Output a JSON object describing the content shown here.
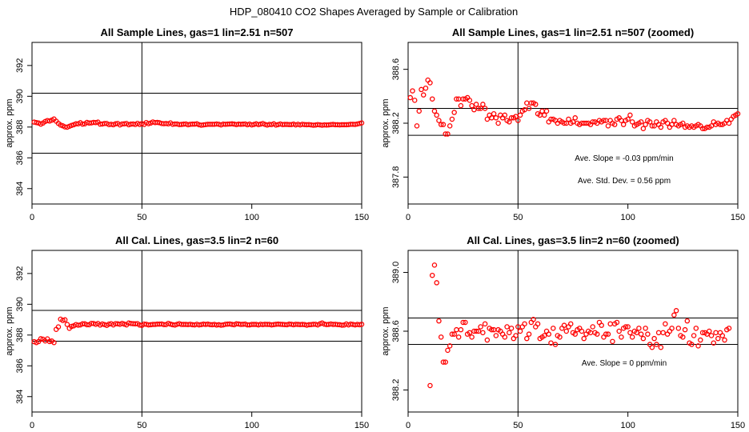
{
  "figure_title": "HDP_080410  CO2 Shapes Averaged by Sample or Calibration",
  "colors": {
    "points": "#ff0000",
    "lines": "#000000"
  },
  "chart_data": [
    {
      "type": "scatter",
      "title": "All Sample Lines, gas=1 lin=2.51 n=507",
      "xlabel": "",
      "ylabel": "approx. ppm",
      "xlim": [
        0,
        150
      ],
      "ylim": [
        383,
        393.5
      ],
      "x_ticks": [
        "0",
        "50",
        "100",
        "150"
      ],
      "y_ticks": [
        "384",
        "386",
        "388",
        "390",
        "392"
      ],
      "hlines": [
        386.3,
        390.2
      ],
      "vline": 50,
      "annotations": [],
      "series": [
        {
          "x_start": 1,
          "x_step": 1,
          "y": [
            388.32,
            388.29,
            388.26,
            388.19,
            388.26,
            388.36,
            388.42,
            388.39,
            388.45,
            388.52,
            388.38,
            388.24,
            388.13,
            388.08,
            388.01,
            387.99,
            388.05,
            388.11,
            388.15,
            388.21,
            388.21,
            388.28,
            388.19,
            388.21,
            388.3,
            388.26,
            388.27,
            388.3,
            388.29,
            388.32,
            388.19,
            388.2,
            388.23,
            388.23,
            388.16,
            388.18,
            388.15,
            388.21,
            388.23,
            388.14,
            388.2,
            388.21,
            388.23,
            388.15,
            388.19,
            388.2,
            388.17,
            388.24,
            388.17,
            388.23,
            388.17,
            388.29,
            388.22,
            388.26,
            388.33,
            388.29,
            388.3,
            388.28,
            388.23,
            388.22,
            388.23,
            388.21,
            388.27,
            388.18,
            388.2,
            388.2,
            388.16,
            388.17,
            388.19,
            388.2,
            388.15,
            388.18,
            388.19,
            388.19,
            388.21,
            388.15,
            388.12,
            388.14,
            388.16,
            388.18,
            388.18,
            388.18,
            388.18,
            388.2,
            388.18,
            388.14,
            388.19,
            388.18,
            388.19,
            388.2,
            388.21,
            388.19,
            388.16,
            388.19,
            388.18,
            388.19,
            388.2,
            388.15,
            388.19,
            388.14,
            388.17,
            388.21,
            388.16,
            388.19,
            388.23,
            388.17,
            388.13,
            388.17,
            388.16,
            388.21,
            388.13,
            388.16,
            388.2,
            388.16,
            388.17,
            388.17,
            388.16,
            388.16,
            388.19,
            388.14,
            388.18,
            388.14,
            388.18,
            388.16,
            388.15,
            388.16,
            388.14,
            388.12,
            388.13,
            388.16,
            388.14,
            388.12,
            388.14,
            388.13,
            388.14,
            388.16,
            388.17,
            388.15,
            388.15,
            388.14,
            388.15,
            388.15,
            388.15,
            388.16,
            388.18,
            388.18,
            388.17,
            388.2,
            388.23,
            388.27
          ]
        }
      ]
    },
    {
      "type": "scatter",
      "title": "All Sample Lines, gas=1 lin=2.51 n=507 (zoomed)",
      "xlabel": "",
      "ylabel": "approx. ppm",
      "xlim": [
        0,
        150
      ],
      "ylim": [
        387.6,
        388.8
      ],
      "x_ticks": [
        "0",
        "50",
        "100",
        "150"
      ],
      "y_ticks": [
        "387.8",
        "388.2",
        "388.6"
      ],
      "hlines": [
        388.31,
        388.11
      ],
      "vline": 50,
      "annotations": [
        "Ave. Slope = -0.03  ppm/min",
        "Ave. Std. Dev. = 0.56  ppm"
      ],
      "series": [
        {
          "x_start": 1,
          "x_step": 1,
          "y": [
            388.39,
            388.44,
            388.37,
            388.18,
            388.29,
            388.45,
            388.41,
            388.46,
            388.52,
            388.5,
            388.38,
            388.29,
            388.26,
            388.22,
            388.19,
            388.19,
            388.12,
            388.12,
            388.18,
            388.23,
            388.28,
            388.38,
            388.38,
            388.33,
            388.38,
            388.38,
            388.39,
            388.37,
            388.33,
            388.3,
            388.34,
            388.31,
            388.31,
            388.34,
            388.31,
            388.23,
            388.26,
            388.24,
            388.27,
            388.24,
            388.2,
            388.26,
            388.24,
            388.26,
            388.22,
            388.21,
            388.24,
            388.24,
            388.25,
            388.22,
            388.26,
            388.29,
            388.3,
            388.35,
            388.31,
            388.35,
            388.35,
            388.34,
            388.27,
            388.26,
            388.29,
            388.26,
            388.29,
            388.21,
            388.23,
            388.23,
            388.22,
            388.2,
            388.22,
            388.21,
            388.2,
            388.2,
            388.23,
            388.2,
            388.21,
            388.24,
            388.2,
            388.19,
            388.2,
            388.2,
            388.2,
            388.2,
            388.19,
            388.21,
            388.21,
            388.2,
            388.22,
            388.21,
            388.22,
            388.22,
            388.18,
            388.22,
            388.2,
            388.19,
            388.23,
            388.24,
            388.22,
            388.19,
            388.22,
            388.23,
            388.26,
            388.21,
            388.18,
            388.19,
            388.2,
            388.21,
            388.16,
            388.19,
            388.22,
            388.21,
            388.18,
            388.18,
            388.21,
            388.19,
            388.17,
            388.21,
            388.22,
            388.2,
            388.17,
            388.19,
            388.22,
            388.19,
            388.18,
            388.19,
            388.2,
            388.17,
            388.18,
            388.17,
            388.18,
            388.17,
            388.18,
            388.19,
            388.18,
            388.16,
            388.16,
            388.17,
            388.17,
            388.18,
            388.21,
            388.19,
            388.2,
            388.19,
            388.19,
            388.2,
            388.22,
            388.2,
            388.23,
            388.25,
            388.26,
            388.27
          ]
        }
      ]
    },
    {
      "type": "scatter",
      "title": "All Cal. Lines, gas=3.5 lin=2 n=60",
      "xlabel": "",
      "ylabel": "approx. ppm",
      "xlim": [
        0,
        150
      ],
      "ylim": [
        383,
        393.5
      ],
      "x_ticks": [
        "0",
        "50",
        "100",
        "150"
      ],
      "y_ticks": [
        "384",
        "386",
        "388",
        "390",
        "392"
      ],
      "hlines": [
        389.6,
        387.6
      ],
      "vline": 50,
      "annotations": [],
      "series": [
        {
          "x_start": 1,
          "x_step": 1,
          "y": [
            387.57,
            387.51,
            387.58,
            387.76,
            387.73,
            387.62,
            387.75,
            387.58,
            387.61,
            387.51,
            388.37,
            388.53,
            389.03,
            388.95,
            388.99,
            388.69,
            388.44,
            388.56,
            388.6,
            388.68,
            388.64,
            388.66,
            388.73,
            388.73,
            388.67,
            388.67,
            388.76,
            388.75,
            388.7,
            388.75,
            388.65,
            388.72,
            388.68,
            388.63,
            388.71,
            388.74,
            388.66,
            388.74,
            388.73,
            388.7,
            388.76,
            388.71,
            388.66,
            388.78,
            388.75,
            388.74,
            388.73,
            388.74,
            388.65,
            388.63,
            388.71,
            388.7,
            388.66,
            388.67,
            388.69,
            388.69,
            388.71,
            388.71,
            388.72,
            388.68,
            388.68,
            388.76,
            388.71,
            388.67,
            388.65,
            388.7,
            388.74,
            388.69,
            388.69,
            388.69,
            388.68,
            388.7,
            388.67,
            388.66,
            388.7,
            388.66,
            388.68,
            388.71,
            388.69,
            388.71,
            388.68,
            388.67,
            388.69,
            388.65,
            388.67,
            388.64,
            388.66,
            388.7,
            388.71,
            388.72,
            388.69,
            388.67,
            388.73,
            388.72,
            388.69,
            388.7,
            388.71,
            388.66,
            388.66,
            388.69,
            388.69,
            388.69,
            388.66,
            388.7,
            388.68,
            388.7,
            388.69,
            388.69,
            388.66,
            388.68,
            388.7,
            388.71,
            388.7,
            388.69,
            388.68,
            388.67,
            388.71,
            388.7,
            388.67,
            388.7,
            388.69,
            388.68,
            388.69,
            388.68,
            388.64,
            388.67,
            388.68,
            388.7,
            388.7,
            388.66,
            388.73,
            388.78,
            388.71,
            388.68,
            388.69,
            388.72,
            388.69,
            388.7,
            388.68,
            388.67,
            388.64,
            388.65,
            388.72,
            388.66,
            388.71,
            388.69,
            388.66,
            388.69,
            388.67,
            388.7
          ]
        }
      ]
    },
    {
      "type": "scatter",
      "title": "All Cal. Lines, gas=3.5 lin=2 n=60 (zoomed)",
      "xlabel": "",
      "ylabel": "approx. ppm",
      "xlim": [
        0,
        150
      ],
      "ylim": [
        388.05,
        389.15
      ],
      "x_ticks": [
        "0",
        "50",
        "100",
        "150"
      ],
      "y_ticks": [
        "388.2",
        "388.6",
        "389.0"
      ],
      "hlines": [
        388.69,
        388.51
      ],
      "vline": 50,
      "annotations": [
        "Ave. Slope = 0  ppm/min"
      ],
      "series": [
        {
          "x_start": 10,
          "x_step": 1,
          "y": [
            388.23,
            388.98,
            389.05,
            388.93,
            388.67,
            388.56,
            388.39,
            388.39,
            388.47,
            388.5,
            388.58,
            388.58,
            388.61,
            388.56,
            388.61,
            388.66,
            388.66,
            388.58,
            388.59,
            388.56,
            388.6,
            388.6,
            388.6,
            388.63,
            388.59,
            388.65,
            388.54,
            388.62,
            388.61,
            388.61,
            388.57,
            388.61,
            388.6,
            388.58,
            388.56,
            388.63,
            388.59,
            388.62,
            388.55,
            388.57,
            388.63,
            388.6,
            388.63,
            388.65,
            388.55,
            388.58,
            388.66,
            388.68,
            388.63,
            388.65,
            388.55,
            388.56,
            388.57,
            388.6,
            388.58,
            388.52,
            388.62,
            388.51,
            388.57,
            388.56,
            388.62,
            388.64,
            388.6,
            388.63,
            388.65,
            388.59,
            388.58,
            388.61,
            388.62,
            388.6,
            388.55,
            388.58,
            388.6,
            388.59,
            388.63,
            388.59,
            388.58,
            388.66,
            388.64,
            388.56,
            388.58,
            388.58,
            388.65,
            388.53,
            388.65,
            388.66,
            388.6,
            388.56,
            388.62,
            388.63,
            388.63,
            388.59,
            388.56,
            388.6,
            388.59,
            388.62,
            388.58,
            388.55,
            388.62,
            388.58,
            388.51,
            388.49,
            388.55,
            388.51,
            388.59,
            388.49,
            388.59,
            388.65,
            388.58,
            388.6,
            388.62,
            388.71,
            388.74,
            388.62,
            388.57,
            388.56,
            388.61,
            388.67,
            388.52,
            388.51,
            388.57,
            388.62,
            388.5,
            388.54,
            388.59,
            388.59,
            388.58,
            388.6,
            388.57,
            388.52,
            388.59,
            388.55,
            388.59,
            388.57,
            388.54,
            388.61,
            388.62
          ]
        }
      ]
    }
  ]
}
